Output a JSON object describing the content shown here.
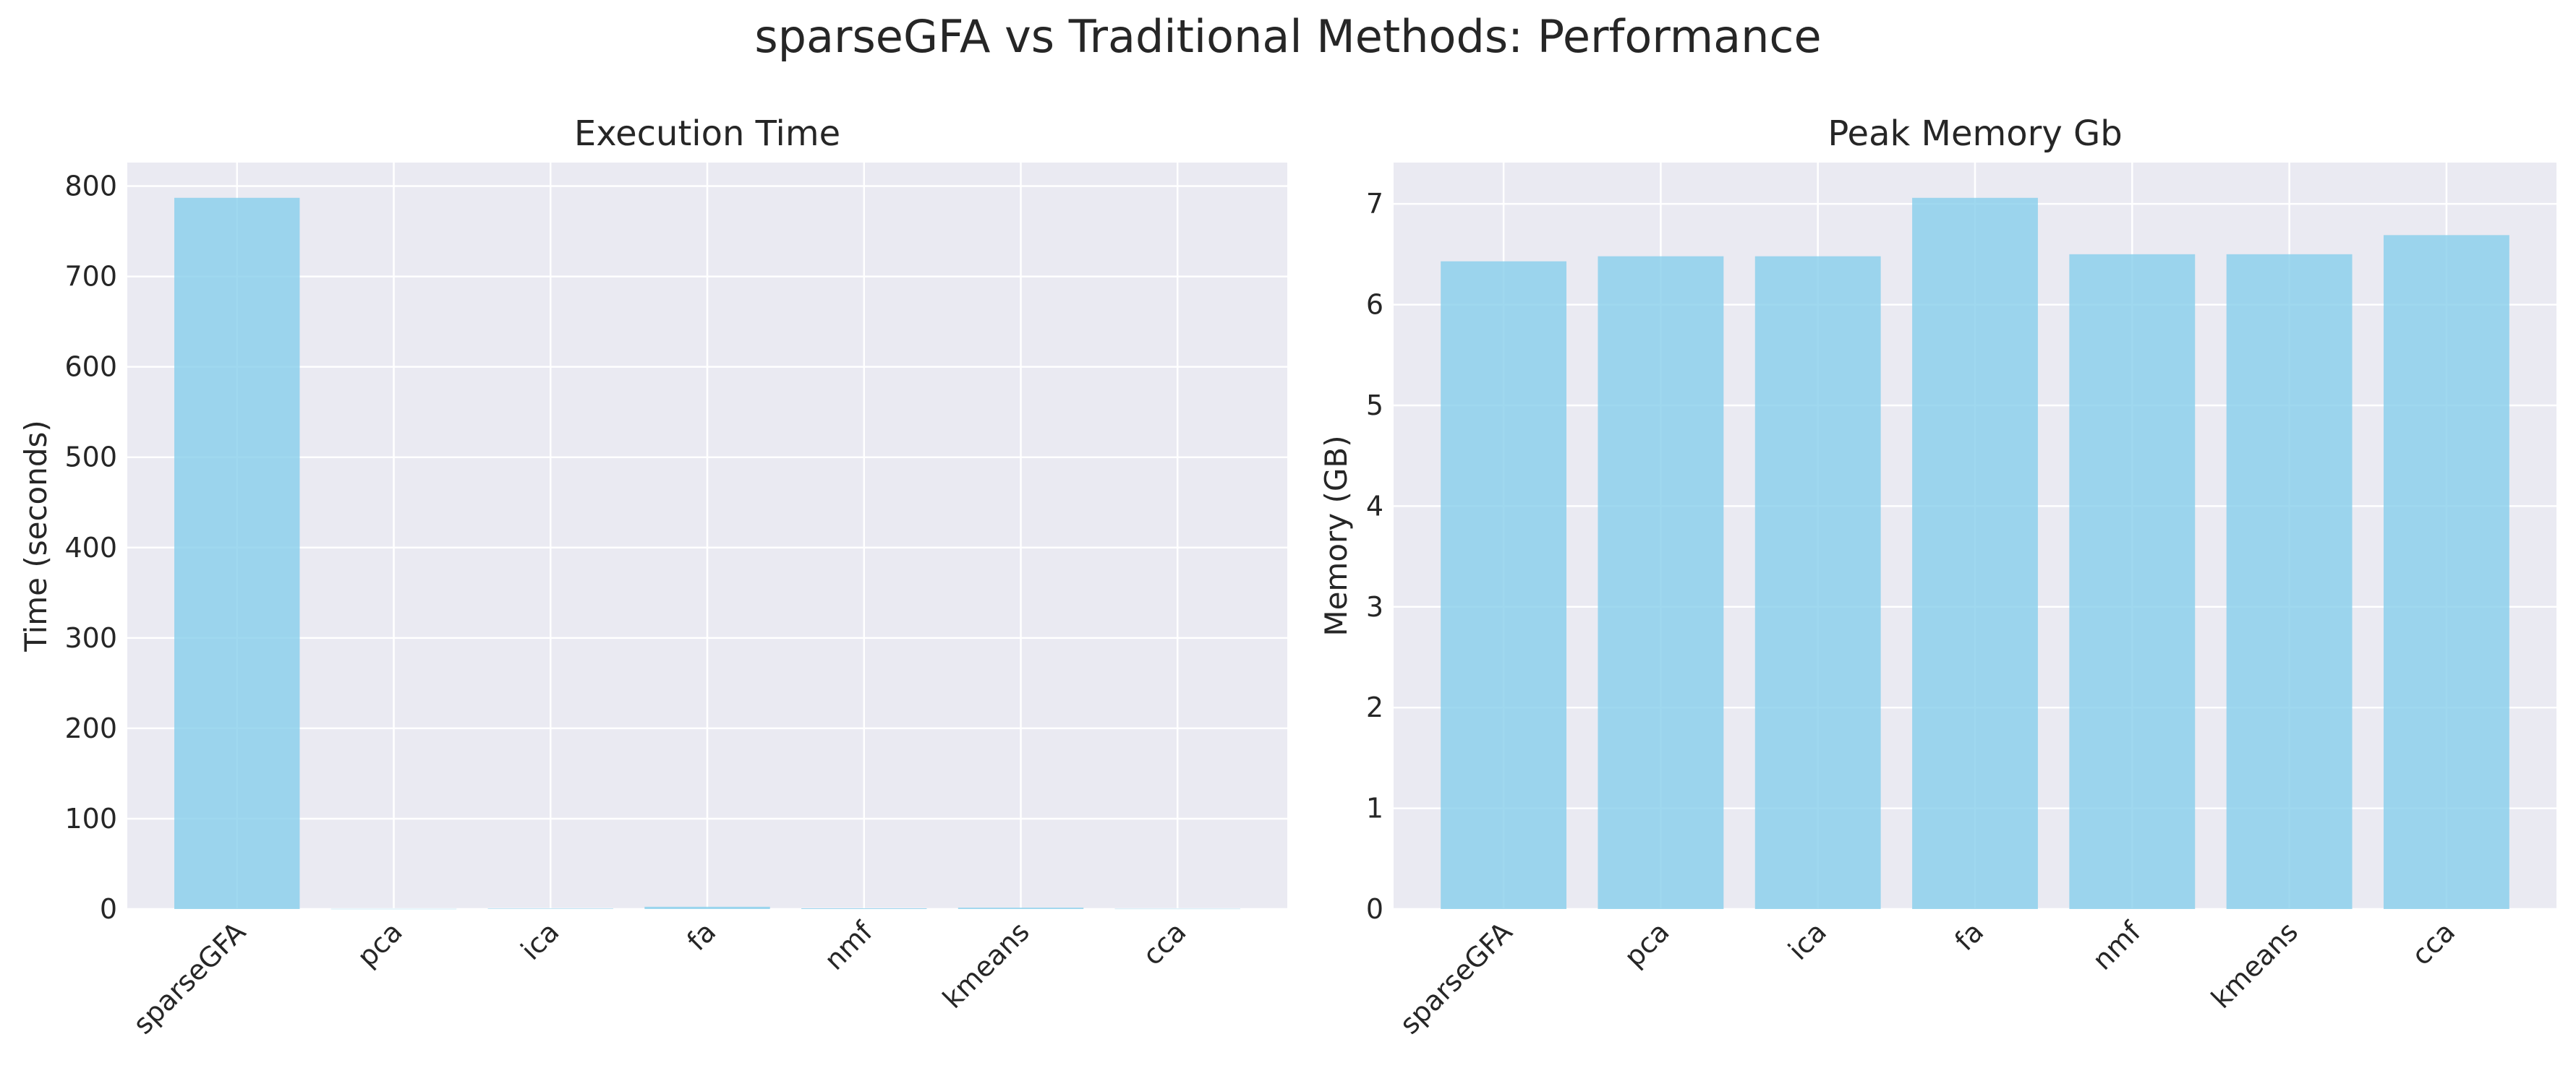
{
  "figure": {
    "title": "sparseGFA vs Traditional Methods: Performance",
    "background": "#ffffff",
    "panel_background": "#eaeaf2",
    "grid_color": "#ffffff",
    "text_color": "#262626"
  },
  "chart_data": [
    {
      "type": "bar",
      "title": "Execution Time",
      "xlabel": "",
      "ylabel": "Time (seconds)",
      "categories": [
        "sparseGFA",
        "pca",
        "ica",
        "fa",
        "nmf",
        "kmeans",
        "cca"
      ],
      "values": [
        787,
        0.2,
        0.5,
        2.5,
        0.8,
        1.5,
        0.3
      ],
      "ylim": [
        0,
        826
      ],
      "yticks": [
        0,
        100,
        200,
        300,
        400,
        500,
        600,
        700,
        800
      ],
      "bar_color": "#87ceeb",
      "grid": true,
      "xtick_rotation": 45
    },
    {
      "type": "bar",
      "title": "Peak Memory Gb",
      "xlabel": "",
      "ylabel": "Memory (GB)",
      "categories": [
        "sparseGFA",
        "pca",
        "ica",
        "fa",
        "nmf",
        "kmeans",
        "cca"
      ],
      "values": [
        6.43,
        6.48,
        6.48,
        7.06,
        6.5,
        6.5,
        6.69
      ],
      "ylim": [
        0,
        7.41
      ],
      "yticks": [
        0,
        1,
        2,
        3,
        4,
        5,
        6,
        7
      ],
      "bar_color": "#87ceeb",
      "grid": true,
      "xtick_rotation": 45
    }
  ]
}
